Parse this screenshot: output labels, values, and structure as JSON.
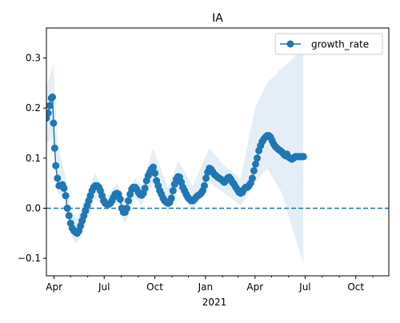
{
  "chart_data": {
    "type": "line",
    "title": "IA",
    "xlabel": "",
    "ylabel": "",
    "x_axis_year_label": "2021",
    "xlim": [
      "2020-03-18",
      "2021-11-30"
    ],
    "ylim": [
      -0.135,
      0.36
    ],
    "x_ticks": [
      {
        "date": "2020-04-01",
        "label": "Apr"
      },
      {
        "date": "2020-07-01",
        "label": "Jul"
      },
      {
        "date": "2020-10-01",
        "label": "Oct"
      },
      {
        "date": "2021-01-01",
        "label": "Jan"
      },
      {
        "date": "2021-04-01",
        "label": "Apr"
      },
      {
        "date": "2021-07-01",
        "label": "Jul"
      },
      {
        "date": "2021-10-01",
        "label": "Oct"
      }
    ],
    "y_ticks": [
      {
        "value": -0.1,
        "label": "−0.1"
      },
      {
        "value": 0.0,
        "label": "0.0"
      },
      {
        "value": 0.1,
        "label": "0.1"
      },
      {
        "value": 0.2,
        "label": "0.2"
      },
      {
        "value": 0.3,
        "label": "0.3"
      }
    ],
    "reference_line": {
      "y": 0.0,
      "style": "dashed",
      "color": "#1f77b4"
    },
    "legend": {
      "position": "upper-right",
      "entries": [
        "growth_rate"
      ]
    },
    "grid": false,
    "colors": {
      "series": "#1f77b4",
      "band": "#dce8f4"
    },
    "series": [
      {
        "name": "growth_rate",
        "marker": "circle",
        "points": [
          [
            "2020-03-18",
            0.18
          ],
          [
            "2020-03-21",
            0.19
          ],
          [
            "2020-03-24",
            0.205
          ],
          [
            "2020-03-27",
            0.22
          ],
          [
            "2020-03-29",
            0.222
          ],
          [
            "2020-03-31",
            0.17
          ],
          [
            "2020-04-02",
            0.12
          ],
          [
            "2020-04-04",
            0.085
          ],
          [
            "2020-04-07",
            0.06
          ],
          [
            "2020-04-10",
            0.045
          ],
          [
            "2020-04-13",
            0.045
          ],
          [
            "2020-04-16",
            0.047
          ],
          [
            "2020-04-19",
            0.04
          ],
          [
            "2020-04-22",
            0.025
          ],
          [
            "2020-04-25",
            0.0
          ],
          [
            "2020-04-28",
            -0.015
          ],
          [
            "2020-05-01",
            -0.03
          ],
          [
            "2020-05-04",
            -0.04
          ],
          [
            "2020-05-07",
            -0.045
          ],
          [
            "2020-05-10",
            -0.048
          ],
          [
            "2020-05-13",
            -0.05
          ],
          [
            "2020-05-16",
            -0.045
          ],
          [
            "2020-05-19",
            -0.035
          ],
          [
            "2020-05-22",
            -0.025
          ],
          [
            "2020-05-25",
            -0.015
          ],
          [
            "2020-05-28",
            -0.005
          ],
          [
            "2020-05-31",
            0.005
          ],
          [
            "2020-06-03",
            0.015
          ],
          [
            "2020-06-06",
            0.025
          ],
          [
            "2020-06-09",
            0.035
          ],
          [
            "2020-06-12",
            0.042
          ],
          [
            "2020-06-15",
            0.045
          ],
          [
            "2020-06-18",
            0.045
          ],
          [
            "2020-06-21",
            0.042
          ],
          [
            "2020-06-24",
            0.035
          ],
          [
            "2020-06-27",
            0.025
          ],
          [
            "2020-06-30",
            0.015
          ],
          [
            "2020-07-03",
            0.01
          ],
          [
            "2020-07-06",
            0.008
          ],
          [
            "2020-07-09",
            0.008
          ],
          [
            "2020-07-12",
            0.01
          ],
          [
            "2020-07-15",
            0.015
          ],
          [
            "2020-07-18",
            0.022
          ],
          [
            "2020-07-21",
            0.028
          ],
          [
            "2020-07-24",
            0.03
          ],
          [
            "2020-07-27",
            0.028
          ],
          [
            "2020-07-30",
            0.018
          ],
          [
            "2020-08-02",
            0.0
          ],
          [
            "2020-08-05",
            -0.008
          ],
          [
            "2020-08-08",
            -0.008
          ],
          [
            "2020-08-11",
            0.0
          ],
          [
            "2020-08-14",
            0.015
          ],
          [
            "2020-08-17",
            0.028
          ],
          [
            "2020-08-20",
            0.038
          ],
          [
            "2020-08-23",
            0.042
          ],
          [
            "2020-08-26",
            0.042
          ],
          [
            "2020-08-29",
            0.038
          ],
          [
            "2020-09-01",
            0.032
          ],
          [
            "2020-09-04",
            0.027
          ],
          [
            "2020-09-07",
            0.026
          ],
          [
            "2020-09-10",
            0.03
          ],
          [
            "2020-09-13",
            0.04
          ],
          [
            "2020-09-16",
            0.055
          ],
          [
            "2020-09-19",
            0.065
          ],
          [
            "2020-09-22",
            0.072
          ],
          [
            "2020-09-25",
            0.078
          ],
          [
            "2020-09-28",
            0.082
          ],
          [
            "2020-10-01",
            0.07
          ],
          [
            "2020-10-04",
            0.055
          ],
          [
            "2020-10-07",
            0.045
          ],
          [
            "2020-10-10",
            0.035
          ],
          [
            "2020-10-13",
            0.028
          ],
          [
            "2020-10-16",
            0.02
          ],
          [
            "2020-10-19",
            0.015
          ],
          [
            "2020-10-22",
            0.012
          ],
          [
            "2020-10-25",
            0.01
          ],
          [
            "2020-10-28",
            0.012
          ],
          [
            "2020-10-31",
            0.02
          ],
          [
            "2020-11-03",
            0.035
          ],
          [
            "2020-11-06",
            0.048
          ],
          [
            "2020-11-09",
            0.058
          ],
          [
            "2020-11-12",
            0.063
          ],
          [
            "2020-11-15",
            0.062
          ],
          [
            "2020-11-18",
            0.052
          ],
          [
            "2020-11-21",
            0.042
          ],
          [
            "2020-11-24",
            0.035
          ],
          [
            "2020-11-27",
            0.028
          ],
          [
            "2020-11-30",
            0.022
          ],
          [
            "2020-12-03",
            0.018
          ],
          [
            "2020-12-06",
            0.015
          ],
          [
            "2020-12-09",
            0.015
          ],
          [
            "2020-12-12",
            0.018
          ],
          [
            "2020-12-15",
            0.022
          ],
          [
            "2020-12-18",
            0.025
          ],
          [
            "2020-12-21",
            0.027
          ],
          [
            "2020-12-24",
            0.03
          ],
          [
            "2020-12-27",
            0.035
          ],
          [
            "2020-12-30",
            0.045
          ],
          [
            "2021-01-02",
            0.06
          ],
          [
            "2021-01-05",
            0.072
          ],
          [
            "2021-01-08",
            0.08
          ],
          [
            "2021-01-11",
            0.078
          ],
          [
            "2021-01-14",
            0.073
          ],
          [
            "2021-01-17",
            0.068
          ],
          [
            "2021-01-20",
            0.065
          ],
          [
            "2021-01-23",
            0.062
          ],
          [
            "2021-01-26",
            0.06
          ],
          [
            "2021-01-29",
            0.058
          ],
          [
            "2021-02-01",
            0.055
          ],
          [
            "2021-02-04",
            0.052
          ],
          [
            "2021-02-07",
            0.055
          ],
          [
            "2021-02-10",
            0.06
          ],
          [
            "2021-02-13",
            0.062
          ],
          [
            "2021-02-16",
            0.058
          ],
          [
            "2021-02-19",
            0.052
          ],
          [
            "2021-02-22",
            0.048
          ],
          [
            "2021-02-25",
            0.042
          ],
          [
            "2021-02-28",
            0.037
          ],
          [
            "2021-03-03",
            0.032
          ],
          [
            "2021-03-06",
            0.03
          ],
          [
            "2021-03-09",
            0.032
          ],
          [
            "2021-03-12",
            0.038
          ],
          [
            "2021-03-15",
            0.042
          ],
          [
            "2021-03-18",
            0.042
          ],
          [
            "2021-03-21",
            0.045
          ],
          [
            "2021-03-24",
            0.05
          ],
          [
            "2021-03-27",
            0.06
          ],
          [
            "2021-03-30",
            0.075
          ],
          [
            "2021-04-02",
            0.088
          ],
          [
            "2021-04-05",
            0.1
          ],
          [
            "2021-04-08",
            0.115
          ],
          [
            "2021-04-11",
            0.125
          ],
          [
            "2021-04-14",
            0.133
          ],
          [
            "2021-04-17",
            0.138
          ],
          [
            "2021-04-20",
            0.142
          ],
          [
            "2021-04-23",
            0.145
          ],
          [
            "2021-04-26",
            0.145
          ],
          [
            "2021-04-29",
            0.142
          ],
          [
            "2021-05-02",
            0.135
          ],
          [
            "2021-05-05",
            0.128
          ],
          [
            "2021-05-08",
            0.123
          ],
          [
            "2021-05-11",
            0.12
          ],
          [
            "2021-05-14",
            0.117
          ],
          [
            "2021-05-17",
            0.115
          ],
          [
            "2021-05-20",
            0.112
          ],
          [
            "2021-05-23",
            0.108
          ],
          [
            "2021-05-26",
            0.105
          ],
          [
            "2021-05-29",
            0.108
          ],
          [
            "2021-06-01",
            0.102
          ],
          [
            "2021-06-04",
            0.1
          ],
          [
            "2021-06-07",
            0.098
          ],
          [
            "2021-06-10",
            0.1
          ],
          [
            "2021-06-13",
            0.103
          ],
          [
            "2021-06-16",
            0.103
          ],
          [
            "2021-06-19",
            0.103
          ],
          [
            "2021-06-22",
            0.103
          ],
          [
            "2021-06-25",
            0.103
          ],
          [
            "2021-06-28",
            0.103
          ]
        ]
      }
    ],
    "band": {
      "points": [
        [
          "2020-03-18",
          0.13,
          0.24
        ],
        [
          "2020-03-31",
          0.14,
          0.29
        ],
        [
          "2020-04-07",
          0.03,
          0.13
        ],
        [
          "2020-04-20",
          0.02,
          0.07
        ],
        [
          "2020-05-04",
          -0.06,
          -0.01
        ],
        [
          "2020-05-13",
          -0.07,
          -0.02
        ],
        [
          "2020-06-15",
          0.02,
          0.07
        ],
        [
          "2020-07-06",
          -0.005,
          0.025
        ],
        [
          "2020-07-24",
          0.01,
          0.05
        ],
        [
          "2020-08-08",
          -0.03,
          0.02
        ],
        [
          "2020-08-26",
          0.02,
          0.06
        ],
        [
          "2020-09-07",
          0.005,
          0.045
        ],
        [
          "2020-09-28",
          0.05,
          0.12
        ],
        [
          "2020-10-25",
          -0.01,
          0.04
        ],
        [
          "2020-11-12",
          0.035,
          0.095
        ],
        [
          "2020-12-09",
          -0.005,
          0.045
        ],
        [
          "2021-01-08",
          0.05,
          0.12
        ],
        [
          "2021-02-04",
          0.03,
          0.085
        ],
        [
          "2021-03-06",
          0.005,
          0.06
        ],
        [
          "2021-04-01",
          0.05,
          0.2
        ],
        [
          "2021-04-23",
          0.08,
          0.25
        ],
        [
          "2021-05-20",
          0.03,
          0.28
        ],
        [
          "2021-06-10",
          -0.05,
          0.3
        ],
        [
          "2021-06-28",
          -0.11,
          0.34
        ]
      ]
    }
  }
}
